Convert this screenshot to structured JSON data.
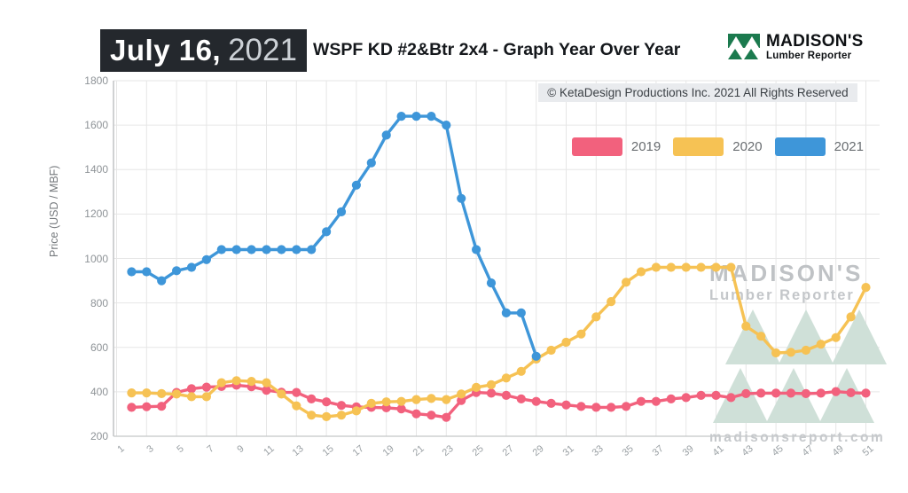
{
  "header": {
    "date_label": "July 16,",
    "date_year": "2021",
    "title": "WSPF KD #2&Btr 2x4 - Graph Year Over Year",
    "logo_name": "MADISON'S",
    "logo_subtitle": "Lumber Reporter"
  },
  "copyright": "© KetaDesign Productions Inc. 2021 All Rights Reserved",
  "watermark": {
    "line1": "MADISON'S",
    "line2": "Lumber Reporter",
    "site": "madisonsreport.com"
  },
  "colors": {
    "series_2019": "#f2617d",
    "series_2020": "#f6c254",
    "series_2021": "#3e96d9",
    "grid": "#e6e6e6",
    "axis": "#c4c6c8"
  },
  "chart_data": {
    "type": "line",
    "title": "WSPF KD #2&Btr 2x4 - Graph Year Over Year",
    "xlabel": "",
    "ylabel": "Price (USD / MBF)",
    "ylim": [
      200,
      1800
    ],
    "y_ticks": [
      200,
      400,
      600,
      800,
      1000,
      1200,
      1400,
      1600,
      1800
    ],
    "x_ticks": [
      1,
      3,
      5,
      7,
      9,
      11,
      13,
      15,
      17,
      19,
      21,
      23,
      25,
      27,
      29,
      31,
      33,
      35,
      37,
      39,
      41,
      43,
      45,
      47,
      49,
      51
    ],
    "grid": true,
    "legend_position": "top-right",
    "start_week": 2,
    "series": [
      {
        "name": "2019",
        "color_key": "series_2019",
        "values": [
          330,
          333,
          335,
          397,
          414,
          421,
          424,
          430,
          423,
          407,
          398,
          397,
          368,
          355,
          339,
          332,
          330,
          328,
          323,
          301,
          295,
          285,
          361,
          397,
          394,
          384,
          368,
          357,
          348,
          341,
          334,
          330,
          330,
          334,
          357,
          357,
          368,
          374,
          384,
          384,
          374,
          392,
          394,
          394,
          394,
          392,
          394,
          401,
          396,
          394
        ]
      },
      {
        "name": "2020",
        "color_key": "series_2020",
        "values": [
          395,
          395,
          392,
          390,
          378,
          378,
          441,
          450,
          447,
          441,
          390,
          337,
          295,
          288,
          295,
          314,
          348,
          355,
          357,
          365,
          370,
          365,
          390,
          420,
          432,
          462,
          492,
          547,
          587,
          623,
          660,
          737,
          806,
          893,
          940,
          960,
          960,
          960,
          960,
          960,
          960,
          695,
          650,
          575,
          578,
          587,
          614,
          644,
          737,
          870
        ]
      },
      {
        "name": "2021",
        "color_key": "series_2021",
        "values": [
          940,
          940,
          900,
          945,
          960,
          995,
          1040,
          1040,
          1040,
          1040,
          1040,
          1040,
          1040,
          1120,
          1210,
          1330,
          1430,
          1555,
          1640,
          1640,
          1640,
          1600,
          1270,
          1040,
          890,
          755,
          755,
          560
        ]
      }
    ]
  }
}
